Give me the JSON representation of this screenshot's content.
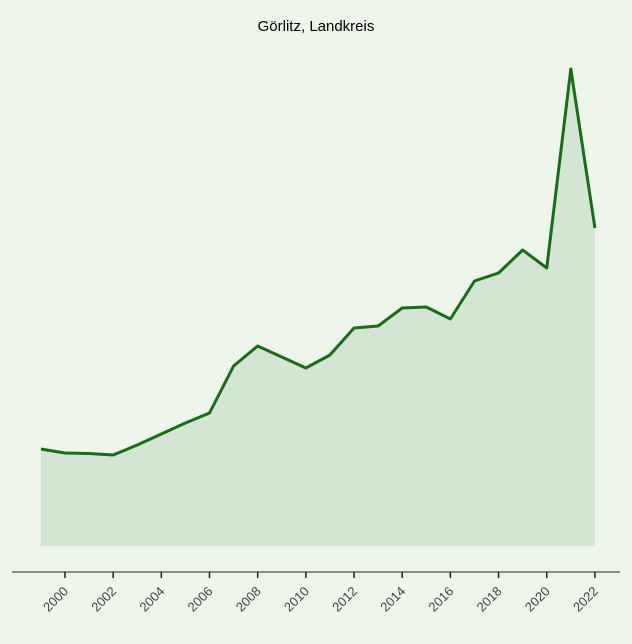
{
  "chart_data": {
    "type": "area",
    "title": "Görlitz, Landkreis",
    "x": [
      1999,
      2000,
      2001,
      2002,
      2003,
      2004,
      2005,
      2006,
      2007,
      2008,
      2009,
      2010,
      2011,
      2012,
      2013,
      2014,
      2015,
      2016,
      2017,
      2018,
      2019,
      2020,
      2021,
      2022
    ],
    "series": [
      {
        "color": "#1a6b1a",
        "fill": "#d4e6d3",
        "values": [
          19.4,
          18.6,
          18.5,
          18.2,
          20.2,
          22.4,
          24.6,
          26.6,
          36,
          40,
          37.8,
          35.6,
          38.2,
          43.6,
          44,
          47.6,
          47.8,
          45.4,
          53,
          54.6,
          59.2,
          55.6,
          95.4,
          63.6
        ]
      }
    ],
    "xlim": [
      1998,
      2023
    ],
    "xticks": [
      2000,
      2002,
      2004,
      2006,
      2008,
      2010,
      2012,
      2014,
      2016,
      2018,
      2020,
      2022
    ],
    "ylim": [
      0,
      100
    ]
  }
}
